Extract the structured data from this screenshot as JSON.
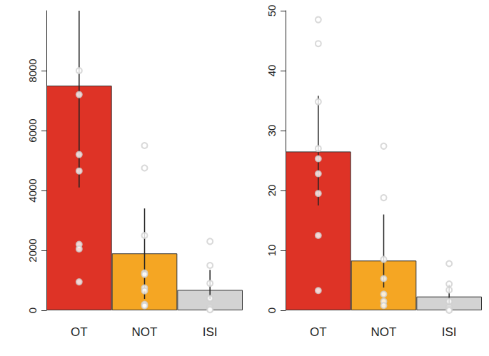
{
  "chart_data": [
    {
      "type": "bar",
      "categories": [
        "OT",
        "NOT",
        "ISI"
      ],
      "values": [
        7500,
        1900,
        680
      ],
      "error_low": [
        4100,
        380,
        380
      ],
      "error_high": [
        10000,
        3400,
        1350
      ],
      "points": [
        [
          8000,
          7200,
          5200,
          4650,
          2200,
          2050,
          950
        ],
        [
          5500,
          4750,
          2500,
          1250,
          1200,
          750,
          650,
          200,
          150
        ],
        [
          2300,
          1500,
          900,
          400,
          100,
          50,
          20
        ]
      ],
      "colors": [
        "#de3326",
        "#f5a623",
        "#d3d3d3"
      ],
      "marker": "circle",
      "ylim": [
        0,
        10000
      ],
      "yticks": [
        0,
        2000,
        4000,
        6000,
        8000
      ],
      "grid": false
    },
    {
      "type": "bar",
      "categories": [
        "OT",
        "NOT",
        "ISI"
      ],
      "values": [
        26.5,
        8.3,
        2.3
      ],
      "error_low": [
        17.5,
        3.8,
        0.8
      ],
      "error_high": [
        35.8,
        16,
        4.3
      ],
      "points": [
        [
          48.5,
          44.5,
          34.8,
          27,
          25.3,
          22.8,
          19.5,
          12.5,
          3.3
        ],
        [
          27.4,
          18.8,
          8.5,
          5.3,
          2.7,
          1.5,
          0.8
        ],
        [
          7.8,
          4.4,
          3.4,
          1.5,
          0.5,
          0.2,
          0
        ]
      ],
      "colors": [
        "#de3326",
        "#f5a623",
        "#d3d3d3"
      ],
      "marker": "circle",
      "ylim": [
        0,
        50
      ],
      "yticks": [
        0,
        10,
        20,
        30,
        40,
        50
      ],
      "grid": false
    }
  ]
}
